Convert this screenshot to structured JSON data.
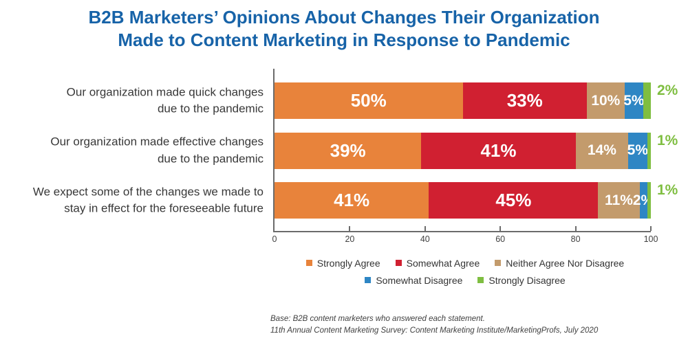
{
  "title": {
    "line1": "B2B Marketers’ Opinions About Changes Their Organization",
    "line2": "Made to Content Marketing in Response to Pandemic"
  },
  "footer": {
    "line1": "Base: B2B content marketers who answered each statement.",
    "line2": "11th Annual Content Marketing Survey: Content Marketing Institute/MarketingProfs, July 2020"
  },
  "colors": {
    "title_blue": "#1763A8",
    "axis_gray": "#6b6b6b",
    "label_text": "#383838"
  },
  "chart_data": {
    "type": "bar",
    "variant": "horizontal-stacked",
    "title": "B2B Marketers’ Opinions About Changes Their Organization Made to Content Marketing in Response to Pandemic",
    "categories": [
      "Our organization made quick changes due to the pandemic",
      "Our organization made effective changes due to the pandemic",
      "We expect some of the changes we made to stay in effect for the foreseeable future"
    ],
    "category_lines": [
      [
        "Our organization made quick changes",
        "due to the pandemic"
      ],
      [
        "Our organization made effective changes",
        "due to the pandemic"
      ],
      [
        "We expect some of the changes we made to",
        "stay in effect for the foreseeable future"
      ]
    ],
    "series": [
      {
        "name": "Strongly Agree",
        "color": "#E8833B",
        "values": [
          50,
          39,
          41
        ]
      },
      {
        "name": "Somewhat Agree",
        "color": "#D02031",
        "values": [
          33,
          41,
          45
        ]
      },
      {
        "name": "Neither Agree Nor Disagree",
        "color": "#C39B6C",
        "values": [
          10,
          14,
          11
        ]
      },
      {
        "name": "Somewhat Disagree",
        "color": "#2E86C4",
        "values": [
          5,
          5,
          2
        ]
      },
      {
        "name": "Strongly Disagree",
        "color": "#7FBE41",
        "values": [
          2,
          1,
          1
        ],
        "labels_outside": true
      }
    ],
    "value_suffix": "%",
    "xticks": [
      0,
      20,
      40,
      60,
      80,
      100
    ],
    "xlim": [
      0,
      100
    ],
    "grid": false,
    "legend_position": "bottom",
    "legend_rows": [
      [
        0,
        1,
        2
      ],
      [
        3,
        4
      ]
    ]
  }
}
